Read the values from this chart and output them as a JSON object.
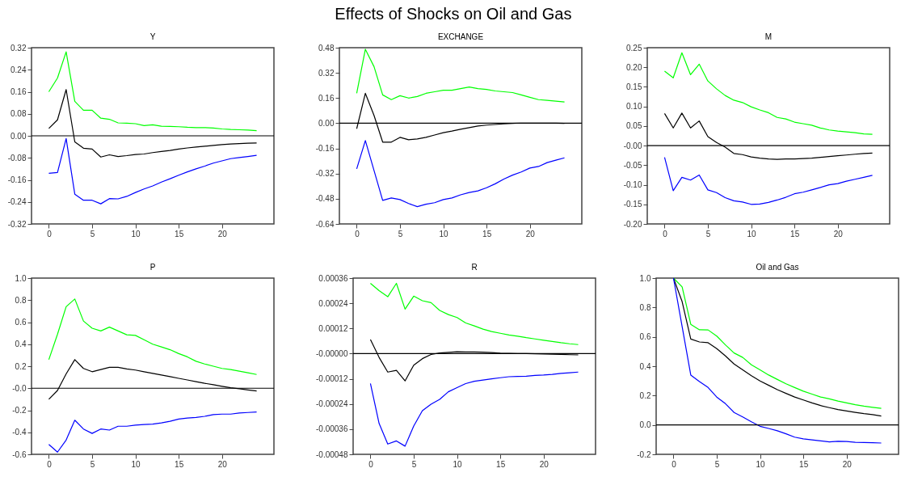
{
  "chart_data": [
    {
      "type": "line",
      "title": "Y",
      "annotations": [
        "Effects of Shocks on Oil and Gas"
      ],
      "x": [
        0,
        1,
        2,
        3,
        4,
        5,
        6,
        7,
        8,
        9,
        10,
        11,
        12,
        13,
        14,
        15,
        16,
        17,
        18,
        19,
        20,
        21,
        22,
        23,
        24
      ],
      "xlim": [
        -2,
        26
      ],
      "xticks": [
        0,
        5,
        10,
        15,
        20
      ],
      "ylim": [
        -0.32,
        0.32
      ],
      "yticks": [
        {
          "value": -0.32,
          "label": "-0.32"
        },
        {
          "value": -0.24,
          "label": "-0.24"
        },
        {
          "value": -0.16,
          "label": "-0.16"
        },
        {
          "value": -0.08,
          "label": "-0.08"
        },
        {
          "value": 0,
          "label": "0.00"
        },
        {
          "value": 0.08,
          "label": "0.08"
        },
        {
          "value": 0.16,
          "label": "0.16"
        },
        {
          "value": 0.24,
          "label": "0.24"
        },
        {
          "value": 0.32,
          "label": "0.32"
        }
      ],
      "ref_lines": [
        {
          "axis": "y",
          "value": 0,
          "color": "#000000"
        }
      ],
      "series": [
        {
          "color": "#00ff00",
          "values": [
            0.16,
            0.21,
            0.305,
            0.125,
            0.093,
            0.093,
            0.064,
            0.06,
            0.047,
            0.046,
            0.044,
            0.037,
            0.04,
            0.035,
            0.034,
            0.033,
            0.031,
            0.03,
            0.03,
            0.028,
            0.025,
            0.023,
            0.022,
            0.021,
            0.019
          ]
        },
        {
          "color": "#000000",
          "values": [
            0.027,
            0.058,
            0.168,
            -0.022,
            -0.045,
            -0.048,
            -0.077,
            -0.069,
            -0.075,
            -0.072,
            -0.068,
            -0.066,
            -0.061,
            -0.057,
            -0.053,
            -0.048,
            -0.044,
            -0.041,
            -0.038,
            -0.035,
            -0.032,
            -0.03,
            -0.028,
            -0.027,
            -0.026
          ]
        },
        {
          "color": "#0000ff",
          "values": [
            -0.136,
            -0.133,
            -0.01,
            -0.212,
            -0.234,
            -0.234,
            -0.247,
            -0.228,
            -0.229,
            -0.22,
            -0.206,
            -0.193,
            -0.182,
            -0.168,
            -0.156,
            -0.143,
            -0.131,
            -0.12,
            -0.11,
            -0.099,
            -0.091,
            -0.083,
            -0.079,
            -0.075,
            -0.071
          ]
        }
      ]
    },
    {
      "type": "line",
      "title": "EXCHANGE",
      "x": [
        0,
        1,
        2,
        3,
        4,
        5,
        6,
        7,
        8,
        9,
        10,
        11,
        12,
        13,
        14,
        15,
        16,
        17,
        18,
        19,
        20,
        21,
        22,
        23,
        24
      ],
      "xlim": [
        -2,
        26
      ],
      "xticks": [
        0,
        5,
        10,
        15,
        20
      ],
      "ylim": [
        -0.64,
        0.48
      ],
      "yticks": [
        {
          "value": -0.64,
          "label": "-0.64"
        },
        {
          "value": -0.48,
          "label": "-0.48"
        },
        {
          "value": -0.32,
          "label": "-0.32"
        },
        {
          "value": -0.16,
          "label": "-0.16"
        },
        {
          "value": 0,
          "label": "0.00"
        },
        {
          "value": 0.16,
          "label": "0.16"
        },
        {
          "value": 0.32,
          "label": "0.32"
        },
        {
          "value": 0.48,
          "label": "0.48"
        }
      ],
      "ref_lines": [
        {
          "axis": "y",
          "value": 0,
          "color": "#000000"
        }
      ],
      "series": [
        {
          "color": "#00ff00",
          "values": [
            0.19,
            0.47,
            0.36,
            0.18,
            0.15,
            0.175,
            0.16,
            0.17,
            0.19,
            0.2,
            0.21,
            0.21,
            0.22,
            0.23,
            0.22,
            0.215,
            0.205,
            0.2,
            0.195,
            0.18,
            0.165,
            0.15,
            0.145,
            0.14,
            0.135
          ]
        },
        {
          "color": "#000000",
          "values": [
            -0.035,
            0.19,
            0.05,
            -0.12,
            -0.12,
            -0.09,
            -0.105,
            -0.1,
            -0.09,
            -0.075,
            -0.06,
            -0.05,
            -0.038,
            -0.028,
            -0.018,
            -0.012,
            -0.008,
            -0.004,
            -0.001,
            0.001,
            0.001,
            0.001,
            0.001,
            0,
            -0.001
          ]
        },
        {
          "color": "#0000ff",
          "values": [
            -0.29,
            -0.11,
            -0.3,
            -0.49,
            -0.475,
            -0.485,
            -0.51,
            -0.53,
            -0.515,
            -0.505,
            -0.485,
            -0.475,
            -0.455,
            -0.44,
            -0.43,
            -0.41,
            -0.385,
            -0.355,
            -0.33,
            -0.31,
            -0.285,
            -0.275,
            -0.25,
            -0.235,
            -0.22
          ]
        }
      ]
    },
    {
      "type": "line",
      "title": "M",
      "x": [
        0,
        1,
        2,
        3,
        4,
        5,
        6,
        7,
        8,
        9,
        10,
        11,
        12,
        13,
        14,
        15,
        16,
        17,
        18,
        19,
        20,
        21,
        22,
        23,
        24
      ],
      "xlim": [
        -2,
        26
      ],
      "xticks": [
        0,
        5,
        10,
        15,
        20
      ],
      "ylim": [
        -0.2,
        0.25
      ],
      "yticks": [
        {
          "value": -0.2,
          "label": "-0.20"
        },
        {
          "value": -0.15,
          "label": "-0.15"
        },
        {
          "value": -0.1,
          "label": "-0.10"
        },
        {
          "value": -0.05,
          "label": "-0.05"
        },
        {
          "value": 0,
          "label": "-0.00"
        },
        {
          "value": 0.05,
          "label": "0.05"
        },
        {
          "value": 0.1,
          "label": "0.10"
        },
        {
          "value": 0.15,
          "label": "0.15"
        },
        {
          "value": 0.2,
          "label": "0.20"
        },
        {
          "value": 0.25,
          "label": "0.25"
        }
      ],
      "ref_lines": [
        {
          "axis": "y",
          "value": 0,
          "color": "#000000"
        }
      ],
      "series": [
        {
          "color": "#00ff00",
          "values": [
            0.19,
            0.173,
            0.237,
            0.181,
            0.208,
            0.165,
            0.145,
            0.128,
            0.116,
            0.11,
            0.099,
            0.091,
            0.084,
            0.072,
            0.068,
            0.06,
            0.056,
            0.052,
            0.045,
            0.04,
            0.037,
            0.035,
            0.033,
            0.03,
            0.029
          ]
        },
        {
          "color": "#000000",
          "values": [
            0.082,
            0.045,
            0.083,
            0.045,
            0.063,
            0.023,
            0.008,
            -0.004,
            -0.02,
            -0.023,
            -0.029,
            -0.032,
            -0.034,
            -0.035,
            -0.034,
            -0.034,
            -0.033,
            -0.032,
            -0.03,
            -0.028,
            -0.026,
            -0.024,
            -0.022,
            -0.02,
            -0.019
          ]
        },
        {
          "color": "#0000ff",
          "values": [
            -0.03,
            -0.115,
            -0.081,
            -0.088,
            -0.075,
            -0.113,
            -0.12,
            -0.133,
            -0.141,
            -0.144,
            -0.15,
            -0.149,
            -0.145,
            -0.139,
            -0.132,
            -0.123,
            -0.119,
            -0.113,
            -0.107,
            -0.1,
            -0.097,
            -0.091,
            -0.086,
            -0.081,
            -0.076
          ]
        }
      ]
    },
    {
      "type": "line",
      "title": "P",
      "x": [
        0,
        1,
        2,
        3,
        4,
        5,
        6,
        7,
        8,
        9,
        10,
        11,
        12,
        13,
        14,
        15,
        16,
        17,
        18,
        19,
        20,
        21,
        22,
        23,
        24
      ],
      "xlim": [
        -2,
        26
      ],
      "xticks": [
        0,
        5,
        10,
        15,
        20
      ],
      "ylim": [
        -0.6,
        1.0
      ],
      "yticks": [
        {
          "value": -0.6,
          "label": "-0.6"
        },
        {
          "value": -0.4,
          "label": "-0.4"
        },
        {
          "value": -0.2,
          "label": "-0.2"
        },
        {
          "value": 0,
          "label": "-0.0"
        },
        {
          "value": 0.2,
          "label": "0.2"
        },
        {
          "value": 0.4,
          "label": "0.4"
        },
        {
          "value": 0.6,
          "label": "0.6"
        },
        {
          "value": 0.8,
          "label": "0.8"
        },
        {
          "value": 1.0,
          "label": "1.0"
        }
      ],
      "ref_lines": [
        {
          "axis": "y",
          "value": 0,
          "color": "#000000"
        }
      ],
      "series": [
        {
          "color": "#00ff00",
          "values": [
            0.26,
            0.49,
            0.74,
            0.81,
            0.61,
            0.545,
            0.52,
            0.555,
            0.52,
            0.485,
            0.48,
            0.44,
            0.4,
            0.375,
            0.35,
            0.315,
            0.285,
            0.245,
            0.22,
            0.2,
            0.18,
            0.17,
            0.155,
            0.14,
            0.125
          ]
        },
        {
          "color": "#000000",
          "values": [
            -0.1,
            -0.02,
            0.13,
            0.26,
            0.18,
            0.15,
            0.17,
            0.19,
            0.19,
            0.175,
            0.165,
            0.15,
            0.135,
            0.12,
            0.105,
            0.09,
            0.075,
            0.06,
            0.045,
            0.032,
            0.018,
            0.005,
            -0.005,
            -0.015,
            -0.025
          ]
        },
        {
          "color": "#0000ff",
          "values": [
            -0.51,
            -0.58,
            -0.47,
            -0.29,
            -0.37,
            -0.41,
            -0.37,
            -0.38,
            -0.345,
            -0.345,
            -0.335,
            -0.33,
            -0.325,
            -0.315,
            -0.3,
            -0.28,
            -0.27,
            -0.265,
            -0.255,
            -0.24,
            -0.235,
            -0.235,
            -0.225,
            -0.22,
            -0.215
          ]
        }
      ]
    },
    {
      "type": "line",
      "title": "R",
      "x": [
        0,
        1,
        2,
        3,
        4,
        5,
        6,
        7,
        8,
        9,
        10,
        11,
        12,
        13,
        14,
        15,
        16,
        17,
        18,
        19,
        20,
        21,
        22,
        23,
        24
      ],
      "xlim": [
        -2,
        26
      ],
      "xticks": [
        0,
        5,
        10,
        15,
        20
      ],
      "ylim": [
        -0.00048,
        0.00036
      ],
      "yticks": [
        {
          "value": -0.00048,
          "label": "-0.00048"
        },
        {
          "value": -0.00036,
          "label": "-0.00036"
        },
        {
          "value": -0.00024,
          "label": "-0.00024"
        },
        {
          "value": -0.00012,
          "label": "-0.00012"
        },
        {
          "value": 0,
          "label": "-0.00000"
        },
        {
          "value": 0.00012,
          "label": "0.00012"
        },
        {
          "value": 0.00024,
          "label": "0.00024"
        },
        {
          "value": 0.00036,
          "label": "0.00036"
        }
      ],
      "ref_lines": [
        {
          "axis": "y",
          "value": 0,
          "color": "#000000"
        }
      ],
      "series": [
        {
          "color": "#00ff00",
          "values": [
            0.000335,
            0.0003,
            0.000271,
            0.000335,
            0.000212,
            0.000274,
            0.000252,
            0.000243,
            0.000206,
            0.000186,
            0.000172,
            0.000146,
            0.000132,
            0.000117,
            0.000105,
            9.7e-05,
            8.9e-05,
            8.3e-05,
            7.6e-05,
            7e-05,
            6.4e-05,
            5.8e-05,
            5.2e-05,
            4.7e-05,
            4.3e-05
          ]
        },
        {
          "color": "#000000",
          "values": [
            6.7e-05,
            -1.8e-05,
            -8.8e-05,
            -8e-05,
            -0.00013,
            -5.5e-05,
            -2.4e-05,
            -4e-06,
            3e-06,
            6e-06,
            9e-06,
            8e-06,
            8e-06,
            7e-06,
            5e-06,
            2e-06,
            1e-06,
            0,
            0,
            -1e-06,
            -2e-06,
            -3e-06,
            -4e-06,
            -5e-06,
            -6e-06
          ]
        },
        {
          "color": "#0000ff",
          "values": [
            -0.000142,
            -0.000333,
            -0.000431,
            -0.000416,
            -0.000441,
            -0.000345,
            -0.000272,
            -0.000241,
            -0.000218,
            -0.000182,
            -0.000162,
            -0.000143,
            -0.000132,
            -0.000126,
            -0.00012,
            -0.000115,
            -0.00011,
            -0.000109,
            -0.000108,
            -0.000104,
            -0.000102,
            -9.9e-05,
            -9.4e-05,
            -9.1e-05,
            -8.8e-05
          ]
        }
      ]
    },
    {
      "type": "line",
      "title": "Oil and Gas",
      "x": [
        0,
        1,
        2,
        3,
        4,
        5,
        6,
        7,
        8,
        9,
        10,
        11,
        12,
        13,
        14,
        15,
        16,
        17,
        18,
        19,
        20,
        21,
        22,
        23,
        24
      ],
      "xlim": [
        -2,
        26
      ],
      "xticks": [
        0,
        5,
        10,
        15,
        20
      ],
      "ylim": [
        -0.2,
        1.0
      ],
      "yticks": [
        {
          "value": -0.2,
          "label": "-0.2"
        },
        {
          "value": 0,
          "label": "0.0"
        },
        {
          "value": 0.2,
          "label": "0.2"
        },
        {
          "value": 0.4,
          "label": "0.4"
        },
        {
          "value": 0.6,
          "label": "0.6"
        },
        {
          "value": 0.8,
          "label": "0.8"
        },
        {
          "value": 1.0,
          "label": "1.0"
        }
      ],
      "ref_lines": [
        {
          "axis": "y",
          "value": 0,
          "color": "#000000"
        }
      ],
      "series": [
        {
          "color": "#00ff00",
          "values": [
            1.0,
            0.94,
            0.685,
            0.648,
            0.647,
            0.605,
            0.545,
            0.49,
            0.46,
            0.41,
            0.375,
            0.34,
            0.31,
            0.28,
            0.255,
            0.23,
            0.21,
            0.19,
            0.178,
            0.163,
            0.15,
            0.138,
            0.128,
            0.12,
            0.113
          ]
        },
        {
          "color": "#000000",
          "values": [
            1.0,
            0.84,
            0.585,
            0.565,
            0.56,
            0.52,
            0.47,
            0.415,
            0.375,
            0.335,
            0.3,
            0.27,
            0.24,
            0.215,
            0.19,
            0.17,
            0.15,
            0.132,
            0.118,
            0.105,
            0.095,
            0.086,
            0.077,
            0.07,
            0.061
          ]
        },
        {
          "color": "#0000ff",
          "values": [
            1.0,
            0.67,
            0.34,
            0.295,
            0.255,
            0.19,
            0.145,
            0.085,
            0.055,
            0.022,
            -0.009,
            -0.024,
            -0.04,
            -0.06,
            -0.083,
            -0.095,
            -0.102,
            -0.108,
            -0.115,
            -0.111,
            -0.113,
            -0.118,
            -0.12,
            -0.121,
            -0.123
          ]
        }
      ]
    }
  ]
}
